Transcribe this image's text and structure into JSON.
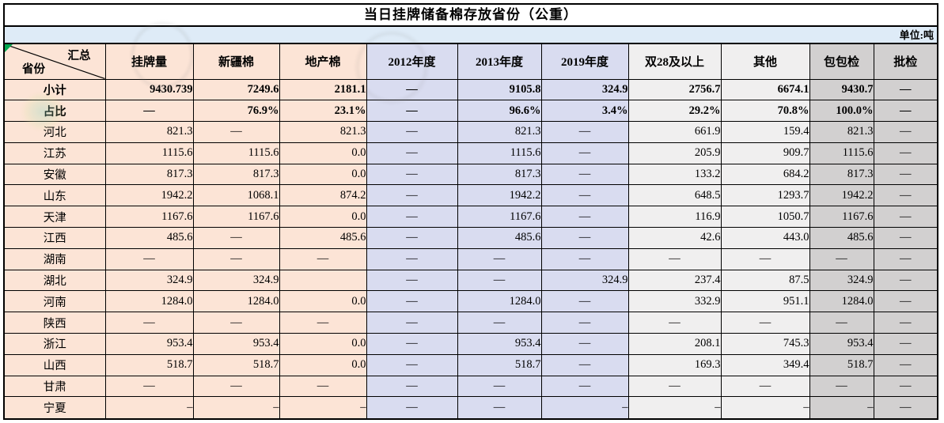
{
  "title": "当日挂牌储备棉存放省份（公重）",
  "unit_label": "单位:吨",
  "header": {
    "corner_top": "汇总",
    "corner_bottom": "省份",
    "columns": [
      "挂牌量",
      "新疆棉",
      "地产棉",
      "2012年度",
      "2013年度",
      "2019年度",
      "双28及以上",
      "其他",
      "包包检",
      "批检"
    ]
  },
  "colors": {
    "peach": "#FCE4D6",
    "periwinkle": "#D9DCF0",
    "light_gray": "#F0EFEF",
    "dark_gray": "#D2D0D0",
    "unit_strip_blue": "#DEEBF7",
    "border": "#000000",
    "corner_marker_green": "#00A650"
  },
  "table": {
    "rows": [
      {
        "label": "小计",
        "bold": true,
        "values": [
          "9430.739",
          "7249.6",
          "2181.1",
          "—",
          "9105.8",
          "324.9",
          "2756.7",
          "6674.1",
          "9430.7",
          "—"
        ]
      },
      {
        "label": "占比",
        "bold": true,
        "values": [
          "—",
          "76.9%",
          "23.1%",
          "—",
          "96.6%",
          "3.4%",
          "29.2%",
          "70.8%",
          "100.0%",
          "—"
        ]
      },
      {
        "label": "河北",
        "bold": false,
        "values": [
          "821.3",
          "—",
          "821.3",
          "—",
          "821.3",
          "—",
          "661.9",
          "159.4",
          "821.3",
          "—"
        ]
      },
      {
        "label": "江苏",
        "bold": false,
        "values": [
          "1115.6",
          "1115.6",
          "0.0",
          "—",
          "1115.6",
          "—",
          "205.9",
          "909.7",
          "1115.6",
          "—"
        ]
      },
      {
        "label": "安徽",
        "bold": false,
        "values": [
          "817.3",
          "817.3",
          "0.0",
          "—",
          "817.3",
          "—",
          "133.2",
          "684.2",
          "817.3",
          "—"
        ]
      },
      {
        "label": "山东",
        "bold": false,
        "values": [
          "1942.2",
          "1068.1",
          "874.2",
          "—",
          "1942.2",
          "—",
          "648.5",
          "1293.7",
          "1942.2",
          "—"
        ]
      },
      {
        "label": "天津",
        "bold": false,
        "values": [
          "1167.6",
          "1167.6",
          "0.0",
          "—",
          "1167.6",
          "—",
          "116.9",
          "1050.7",
          "1167.6",
          "—"
        ]
      },
      {
        "label": "江西",
        "bold": false,
        "values": [
          "485.6",
          "—",
          "485.6",
          "—",
          "485.6",
          "—",
          "42.6",
          "443.0",
          "485.6",
          "—"
        ]
      },
      {
        "label": "湖南",
        "bold": false,
        "values": [
          "—",
          "—",
          "—",
          "—",
          "—",
          "—",
          "—",
          "—",
          "—",
          "—"
        ]
      },
      {
        "label": "湖北",
        "bold": false,
        "values": [
          "324.9",
          "324.9",
          "",
          "—",
          "—",
          "324.9",
          "237.4",
          "87.5",
          "324.9",
          "—"
        ]
      },
      {
        "label": "河南",
        "bold": false,
        "values": [
          "1284.0",
          "1284.0",
          "0.0",
          "—",
          "1284.0",
          "—",
          "332.9",
          "951.1",
          "1284.0",
          "—"
        ]
      },
      {
        "label": "陕西",
        "bold": false,
        "values": [
          "—",
          "—",
          "—",
          "—",
          "—",
          "—",
          "—",
          "—",
          "—",
          "—"
        ]
      },
      {
        "label": "浙江",
        "bold": false,
        "values": [
          "953.4",
          "953.4",
          "0.0",
          "—",
          "953.4",
          "—",
          "208.1",
          "745.3",
          "953.4",
          "—"
        ]
      },
      {
        "label": "山西",
        "bold": false,
        "values": [
          "518.7",
          "518.7",
          "0.0",
          "—",
          "518.7",
          "—",
          "169.3",
          "349.4",
          "518.7",
          "—"
        ]
      },
      {
        "label": "甘肃",
        "bold": false,
        "values": [
          "—",
          "—",
          "—",
          "—",
          "—",
          "—",
          "—",
          "—",
          "—",
          "—"
        ]
      },
      {
        "label": "宁夏",
        "bold": false,
        "values": [
          "–",
          "–",
          "–",
          "—",
          "—",
          "–",
          "–",
          "–",
          "–",
          "—"
        ]
      }
    ]
  }
}
